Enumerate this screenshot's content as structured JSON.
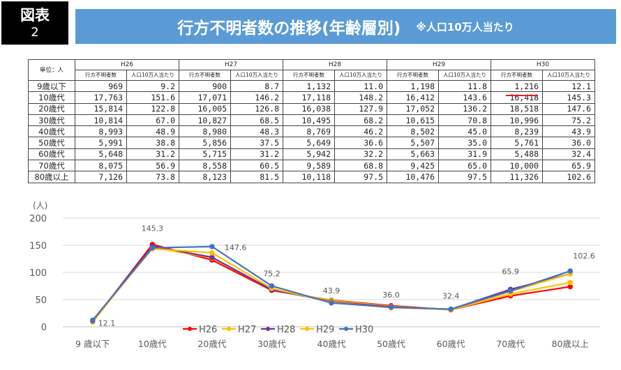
{
  "badge": {
    "line1": "図表",
    "line2": "2"
  },
  "title": {
    "main": "行方不明者数の推移(年齢層別)",
    "note": "※人口10万人当たり"
  },
  "table": {
    "unit_label": "単位：人",
    "years": [
      "H26",
      "H27",
      "H28",
      "H29",
      "H30"
    ],
    "sub_headers": [
      "行方不明者数",
      "人口10万人当たり"
    ],
    "rows": [
      {
        "label": "9歳以下",
        "values": [
          "969",
          "9.2",
          "900",
          "8.7",
          "1,132",
          "11.0",
          "1,198",
          "11.8",
          "1,216",
          "12.1"
        ]
      },
      {
        "label": "10歳代",
        "values": [
          "17,763",
          "151.6",
          "17,071",
          "146.2",
          "17,118",
          "148.2",
          "16,412",
          "143.6",
          "16,418",
          "145.3"
        ]
      },
      {
        "label": "20歳代",
        "values": [
          "15,814",
          "122.8",
          "16,005",
          "126.8",
          "16,038",
          "127.9",
          "17,052",
          "136.2",
          "18,518",
          "147.6"
        ]
      },
      {
        "label": "30歳代",
        "values": [
          "10,814",
          "67.0",
          "10,827",
          "68.5",
          "10,495",
          "68.2",
          "10,615",
          "70.8",
          "10,996",
          "75.2"
        ]
      },
      {
        "label": "40歳代",
        "values": [
          "8,993",
          "48.9",
          "8,980",
          "48.3",
          "8,769",
          "46.2",
          "8,502",
          "45.0",
          "8,239",
          "43.9"
        ]
      },
      {
        "label": "50歳代",
        "values": [
          "5,991",
          "38.8",
          "5,856",
          "37.5",
          "5,649",
          "36.6",
          "5,507",
          "35.0",
          "5,761",
          "36.0"
        ]
      },
      {
        "label": "60歳代",
        "values": [
          "5,648",
          "31.2",
          "5,715",
          "31.2",
          "5,942",
          "32.2",
          "5,663",
          "31.9",
          "5,488",
          "32.4"
        ]
      },
      {
        "label": "70歳代",
        "values": [
          "8,075",
          "56.9",
          "8,558",
          "60.5",
          "9,589",
          "68.8",
          "9,425",
          "65.0",
          "10,000",
          "65.9"
        ]
      },
      {
        "label": "80歳以上",
        "values": [
          "7,126",
          "73.8",
          "8,123",
          "81.5",
          "10,118",
          "97.5",
          "10,476",
          "97.5",
          "11,326",
          "102.6"
        ]
      }
    ],
    "highlight_color": "#e0202a"
  },
  "chart_data": {
    "type": "line",
    "ylabel": "(人)",
    "ylim": [
      0,
      200
    ],
    "yticks": [
      0,
      50,
      100,
      150,
      200
    ],
    "grid": true,
    "legend_position": "bottom-center",
    "categories": [
      "9 歳以下",
      "10歳代",
      "20歳代",
      "30歳代",
      "40歳代",
      "50歳代",
      "60歳代",
      "70歳代",
      "80歳以上"
    ],
    "series": [
      {
        "name": "H26",
        "color": "#ff0000",
        "values": [
          9.2,
          151.6,
          122.8,
          67.0,
          48.9,
          38.8,
          31.2,
          56.9,
          73.8
        ]
      },
      {
        "name": "H27",
        "color": "#ffc000",
        "values": [
          8.7,
          146.2,
          126.8,
          68.5,
          48.3,
          37.5,
          31.2,
          60.5,
          81.5
        ]
      },
      {
        "name": "H28",
        "color": "#7030a0",
        "values": [
          11.0,
          148.2,
          127.9,
          68.2,
          46.2,
          36.6,
          32.2,
          68.8,
          97.5
        ]
      },
      {
        "name": "H29",
        "color": "#ffc000",
        "values": [
          11.8,
          143.6,
          136.2,
          70.8,
          45.0,
          35.0,
          31.9,
          65.0,
          97.5
        ]
      },
      {
        "name": "H30",
        "color": "#4472c4",
        "values": [
          12.1,
          145.3,
          147.6,
          75.2,
          43.9,
          36.0,
          32.4,
          65.9,
          102.6
        ]
      }
    ],
    "data_labels": [
      "12.1",
      "145.3",
      "147.6",
      "75.2",
      "43.9",
      "36.0",
      "32.4",
      "65.9",
      "102.6"
    ]
  }
}
